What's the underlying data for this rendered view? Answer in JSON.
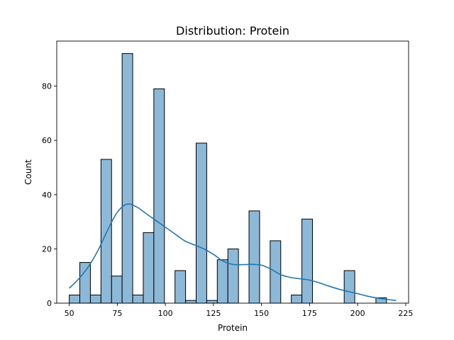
{
  "chart_data": {
    "type": "bar",
    "title": "Distribution: Protein",
    "xlabel": "Protein",
    "ylabel": "Count",
    "xlim": [
      43.5,
      226.5
    ],
    "ylim": [
      0,
      96.6
    ],
    "xticks": [
      50,
      75,
      100,
      125,
      150,
      175,
      200,
      225
    ],
    "yticks": [
      0,
      20,
      40,
      60,
      80
    ],
    "grid": false,
    "bin_width": 5.5,
    "bins": [
      {
        "start": 50.0,
        "count": 3
      },
      {
        "start": 55.5,
        "count": 15
      },
      {
        "start": 61.0,
        "count": 3
      },
      {
        "start": 66.5,
        "count": 53
      },
      {
        "start": 72.0,
        "count": 10
      },
      {
        "start": 77.5,
        "count": 92
      },
      {
        "start": 83.0,
        "count": 3
      },
      {
        "start": 88.5,
        "count": 26
      },
      {
        "start": 94.0,
        "count": 79
      },
      {
        "start": 99.5,
        "count": 0
      },
      {
        "start": 105.0,
        "count": 12
      },
      {
        "start": 110.5,
        "count": 1
      },
      {
        "start": 116.0,
        "count": 59
      },
      {
        "start": 121.5,
        "count": 1
      },
      {
        "start": 127.0,
        "count": 16
      },
      {
        "start": 132.5,
        "count": 20
      },
      {
        "start": 138.0,
        "count": 0
      },
      {
        "start": 143.5,
        "count": 34
      },
      {
        "start": 149.0,
        "count": 0
      },
      {
        "start": 154.5,
        "count": 23
      },
      {
        "start": 160.0,
        "count": 0
      },
      {
        "start": 165.5,
        "count": 3
      },
      {
        "start": 171.0,
        "count": 31
      },
      {
        "start": 176.5,
        "count": 0
      },
      {
        "start": 182.0,
        "count": 0
      },
      {
        "start": 187.5,
        "count": 0
      },
      {
        "start": 193.0,
        "count": 12
      },
      {
        "start": 198.5,
        "count": 0
      },
      {
        "start": 204.0,
        "count": 0
      },
      {
        "start": 209.5,
        "count": 2
      }
    ],
    "kde": {
      "x": [
        50,
        55,
        60,
        65,
        70,
        75,
        80,
        85,
        90,
        95,
        100,
        105,
        110,
        115,
        120,
        125,
        130,
        135,
        140,
        145,
        150,
        155,
        160,
        165,
        170,
        175,
        180,
        185,
        190,
        195,
        200,
        205,
        210,
        215,
        220
      ],
      "y": [
        5.5,
        9,
        13.5,
        19.5,
        27,
        33.5,
        36.5,
        35.5,
        33,
        30.5,
        28,
        25.5,
        23,
        21.5,
        20,
        18,
        15.5,
        14.3,
        14.2,
        14.3,
        14,
        12.5,
        10.5,
        9.5,
        9,
        8.5,
        7.5,
        6.3,
        5.2,
        4.3,
        3.5,
        2.6,
        1.9,
        1.4,
        1
      ]
    }
  }
}
